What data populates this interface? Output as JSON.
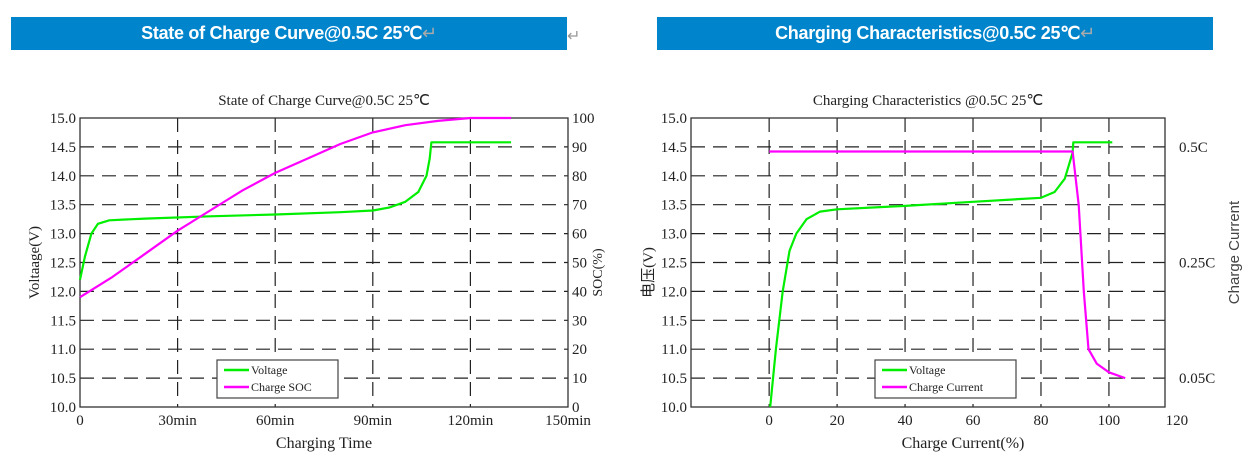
{
  "headers": [
    {
      "text": "State of Charge Curve@0.5C  25℃",
      "mark": "↵"
    },
    {
      "text": "Charging Characteristics@0.5C  25℃",
      "mark": "↵"
    }
  ],
  "paragraph_mark": "↵",
  "colors": {
    "header_bg": "#0085cc",
    "voltage": "#00ee00",
    "soc": "#ff00ff",
    "current": "#ff00ff"
  },
  "chart_data": [
    {
      "type": "line",
      "title": "State of Charge Curve@0.5C 25℃",
      "xlabel": "Charging Time",
      "ylabel": "Voltaage(V)",
      "y2label": "SOC(%)",
      "xlim": [
        0,
        150
      ],
      "ylim": [
        10.0,
        15.0
      ],
      "y2lim": [
        0,
        100
      ],
      "xticks": [
        {
          "v": 0,
          "label": "0"
        },
        {
          "v": 30,
          "label": "30min"
        },
        {
          "v": 60,
          "label": "60min"
        },
        {
          "v": 90,
          "label": "90min"
        },
        {
          "v": 120,
          "label": "120min"
        },
        {
          "v": 150,
          "label": "150min"
        }
      ],
      "yticks": [
        "10.0",
        "10.5",
        "11.0",
        "11.5",
        "12.0",
        "12.5",
        "13.0",
        "13.5",
        "14.0",
        "14.5",
        "15.0"
      ],
      "y2ticks": [
        "0",
        "10",
        "20",
        "30",
        "40",
        "50",
        "60",
        "70",
        "80",
        "90",
        "100"
      ],
      "grid": true,
      "legend": "bottom-center",
      "series": [
        {
          "name": "Voltage",
          "axis": "left",
          "color": "#00ee00",
          "points": [
            [
              0,
              12.2
            ],
            [
              1.5,
              12.6
            ],
            [
              3.5,
              13.0
            ],
            [
              5.5,
              13.17
            ],
            [
              9,
              13.23
            ],
            [
              20,
              13.26
            ],
            [
              40,
              13.3
            ],
            [
              60,
              13.33
            ],
            [
              80,
              13.37
            ],
            [
              90,
              13.4
            ],
            [
              95,
              13.45
            ],
            [
              100,
              13.55
            ],
            [
              104,
              13.72
            ],
            [
              106.5,
              14.0
            ],
            [
              107.5,
              14.3
            ],
            [
              108,
              14.58
            ],
            [
              132.5,
              14.58
            ]
          ]
        },
        {
          "name": "Charge SOC",
          "axis": "right",
          "color": "#ff00ff",
          "points": [
            [
              0,
              38
            ],
            [
              10,
              45
            ],
            [
              20,
              53
            ],
            [
              30,
              61
            ],
            [
              40,
              68
            ],
            [
              50,
              75
            ],
            [
              60,
              81
            ],
            [
              70,
              86
            ],
            [
              80,
              91
            ],
            [
              90,
              95
            ],
            [
              100,
              97.5
            ],
            [
              110,
              99
            ],
            [
              120,
              100
            ],
            [
              132.5,
              100
            ]
          ]
        }
      ]
    },
    {
      "type": "line",
      "title": "Charging Characteristics @0.5C 25℃",
      "xlabel": "Charge Current(%)",
      "ylabel": "电压(V)",
      "y2label": "Charge Current",
      "xlim": [
        -23,
        116.5
      ],
      "ylim": [
        10.0,
        15.0
      ],
      "xticks": [
        {
          "v": 0,
          "label": "0"
        },
        {
          "v": 20,
          "label": "20"
        },
        {
          "v": 40,
          "label": "40"
        },
        {
          "v": 60,
          "label": "60"
        },
        {
          "v": 80,
          "label": "80"
        },
        {
          "v": 100,
          "label": "100"
        },
        {
          "v": 120,
          "label": "120"
        }
      ],
      "yticks": [
        "10.0",
        "10.5",
        "11.0",
        "11.5",
        "12.0",
        "12.5",
        "13.0",
        "13.5",
        "14.0",
        "14.5",
        "15.0"
      ],
      "y2ticks": [
        {
          "v": 0.05,
          "label": "0.05C"
        },
        {
          "v": 0.25,
          "label": "0.25C"
        },
        {
          "v": 0.5,
          "label": "0.5C"
        }
      ],
      "grid": true,
      "legend": "bottom-center",
      "series": [
        {
          "name": "Voltage",
          "axis": "left",
          "color": "#00ee00",
          "points": [
            [
              0.3,
              10.0
            ],
            [
              2,
              11.0
            ],
            [
              4,
              12.0
            ],
            [
              6,
              12.7
            ],
            [
              8,
              13.0
            ],
            [
              11,
              13.25
            ],
            [
              15,
              13.38
            ],
            [
              20,
              13.42
            ],
            [
              40,
              13.48
            ],
            [
              60,
              13.55
            ],
            [
              80,
              13.62
            ],
            [
              84,
              13.72
            ],
            [
              87,
              13.95
            ],
            [
              89.3,
              14.4
            ],
            [
              89.5,
              14.58
            ],
            [
              101,
              14.58
            ]
          ]
        },
        {
          "name": "Charge Current",
          "axis": "right",
          "color": "#ff00ff",
          "points": [
            [
              0,
              0.49
            ],
            [
              89.3,
              0.49
            ],
            [
              91.1,
              0.375
            ],
            [
              92.6,
              0.2
            ],
            [
              94,
              0.1
            ],
            [
              96.4,
              0.075
            ],
            [
              100,
              0.06
            ],
            [
              104.8,
              0.05
            ]
          ]
        }
      ]
    }
  ]
}
